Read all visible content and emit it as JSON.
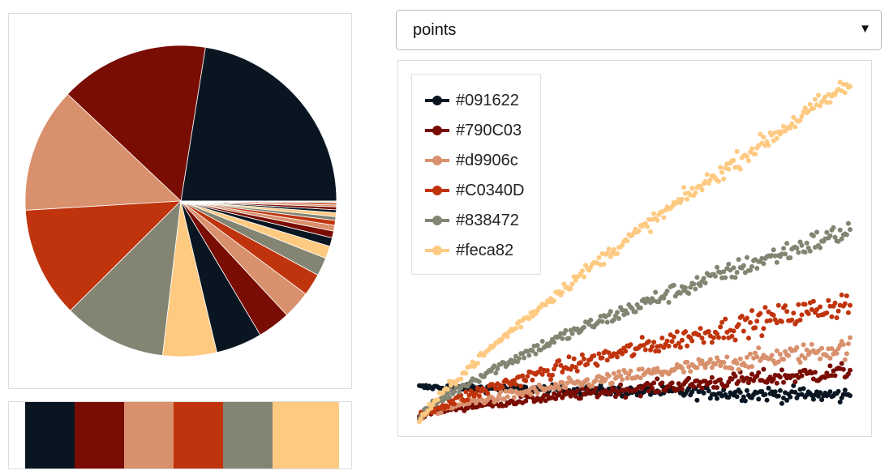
{
  "palette": {
    "colors": [
      "#091622",
      "#790C03",
      "#d9906c",
      "#C0340D",
      "#838472",
      "#feca82"
    ]
  },
  "mode_select": {
    "value": "points",
    "options": [
      "points"
    ]
  },
  "chart_data": [
    {
      "type": "pie",
      "title": "",
      "slice_colors": [
        "#091622",
        "#790C03",
        "#d9906c",
        "#C0340D",
        "#838472",
        "#feca82",
        "#091622",
        "#790C03",
        "#d9906c",
        "#C0340D",
        "#838472",
        "#feca82",
        "#091622",
        "#790C03",
        "#d9906c",
        "#C0340D",
        "#838472",
        "#feca82",
        "#091622",
        "#790C03",
        "#d9906c",
        "#C0340D",
        "#838472",
        "#feca82"
      ],
      "values": [
        0.225,
        0.155,
        0.13,
        0.115,
        0.107,
        0.056,
        0.048,
        0.034,
        0.029,
        0.023,
        0.019,
        0.013,
        0.009,
        0.007,
        0.006,
        0.005,
        0.004,
        0.004,
        0.003,
        0.003,
        0.002,
        0.002,
        0.001,
        0.001
      ]
    },
    {
      "type": "scatter",
      "title": "",
      "xlabel": "",
      "ylabel": "",
      "xlim": [
        0,
        100
      ],
      "ylim": [
        0,
        100
      ],
      "grid": false,
      "legend_position": "top-left",
      "series": [
        {
          "name": "#091622",
          "color": "#091622",
          "y_start": 10.0,
          "y_end": 7.5,
          "noise": 2.2
        },
        {
          "name": "#790C03",
          "color": "#790C03",
          "y_start": 2.0,
          "y_end": 14.5,
          "noise": 2.5
        },
        {
          "name": "#d9906c",
          "color": "#d9906c",
          "y_start": 1.5,
          "y_end": 21.5,
          "noise": 2.8
        },
        {
          "name": "#C0340D",
          "color": "#C0340D",
          "y_start": 1.0,
          "y_end": 34.5,
          "noise": 3.8
        },
        {
          "name": "#838472",
          "color": "#838472",
          "y_start": 0.5,
          "y_end": 55.5,
          "noise": 3.2
        },
        {
          "name": "#feca82",
          "color": "#feca82",
          "y_start": 0.0,
          "y_end": 98.0,
          "noise": 2.8
        }
      ]
    }
  ]
}
